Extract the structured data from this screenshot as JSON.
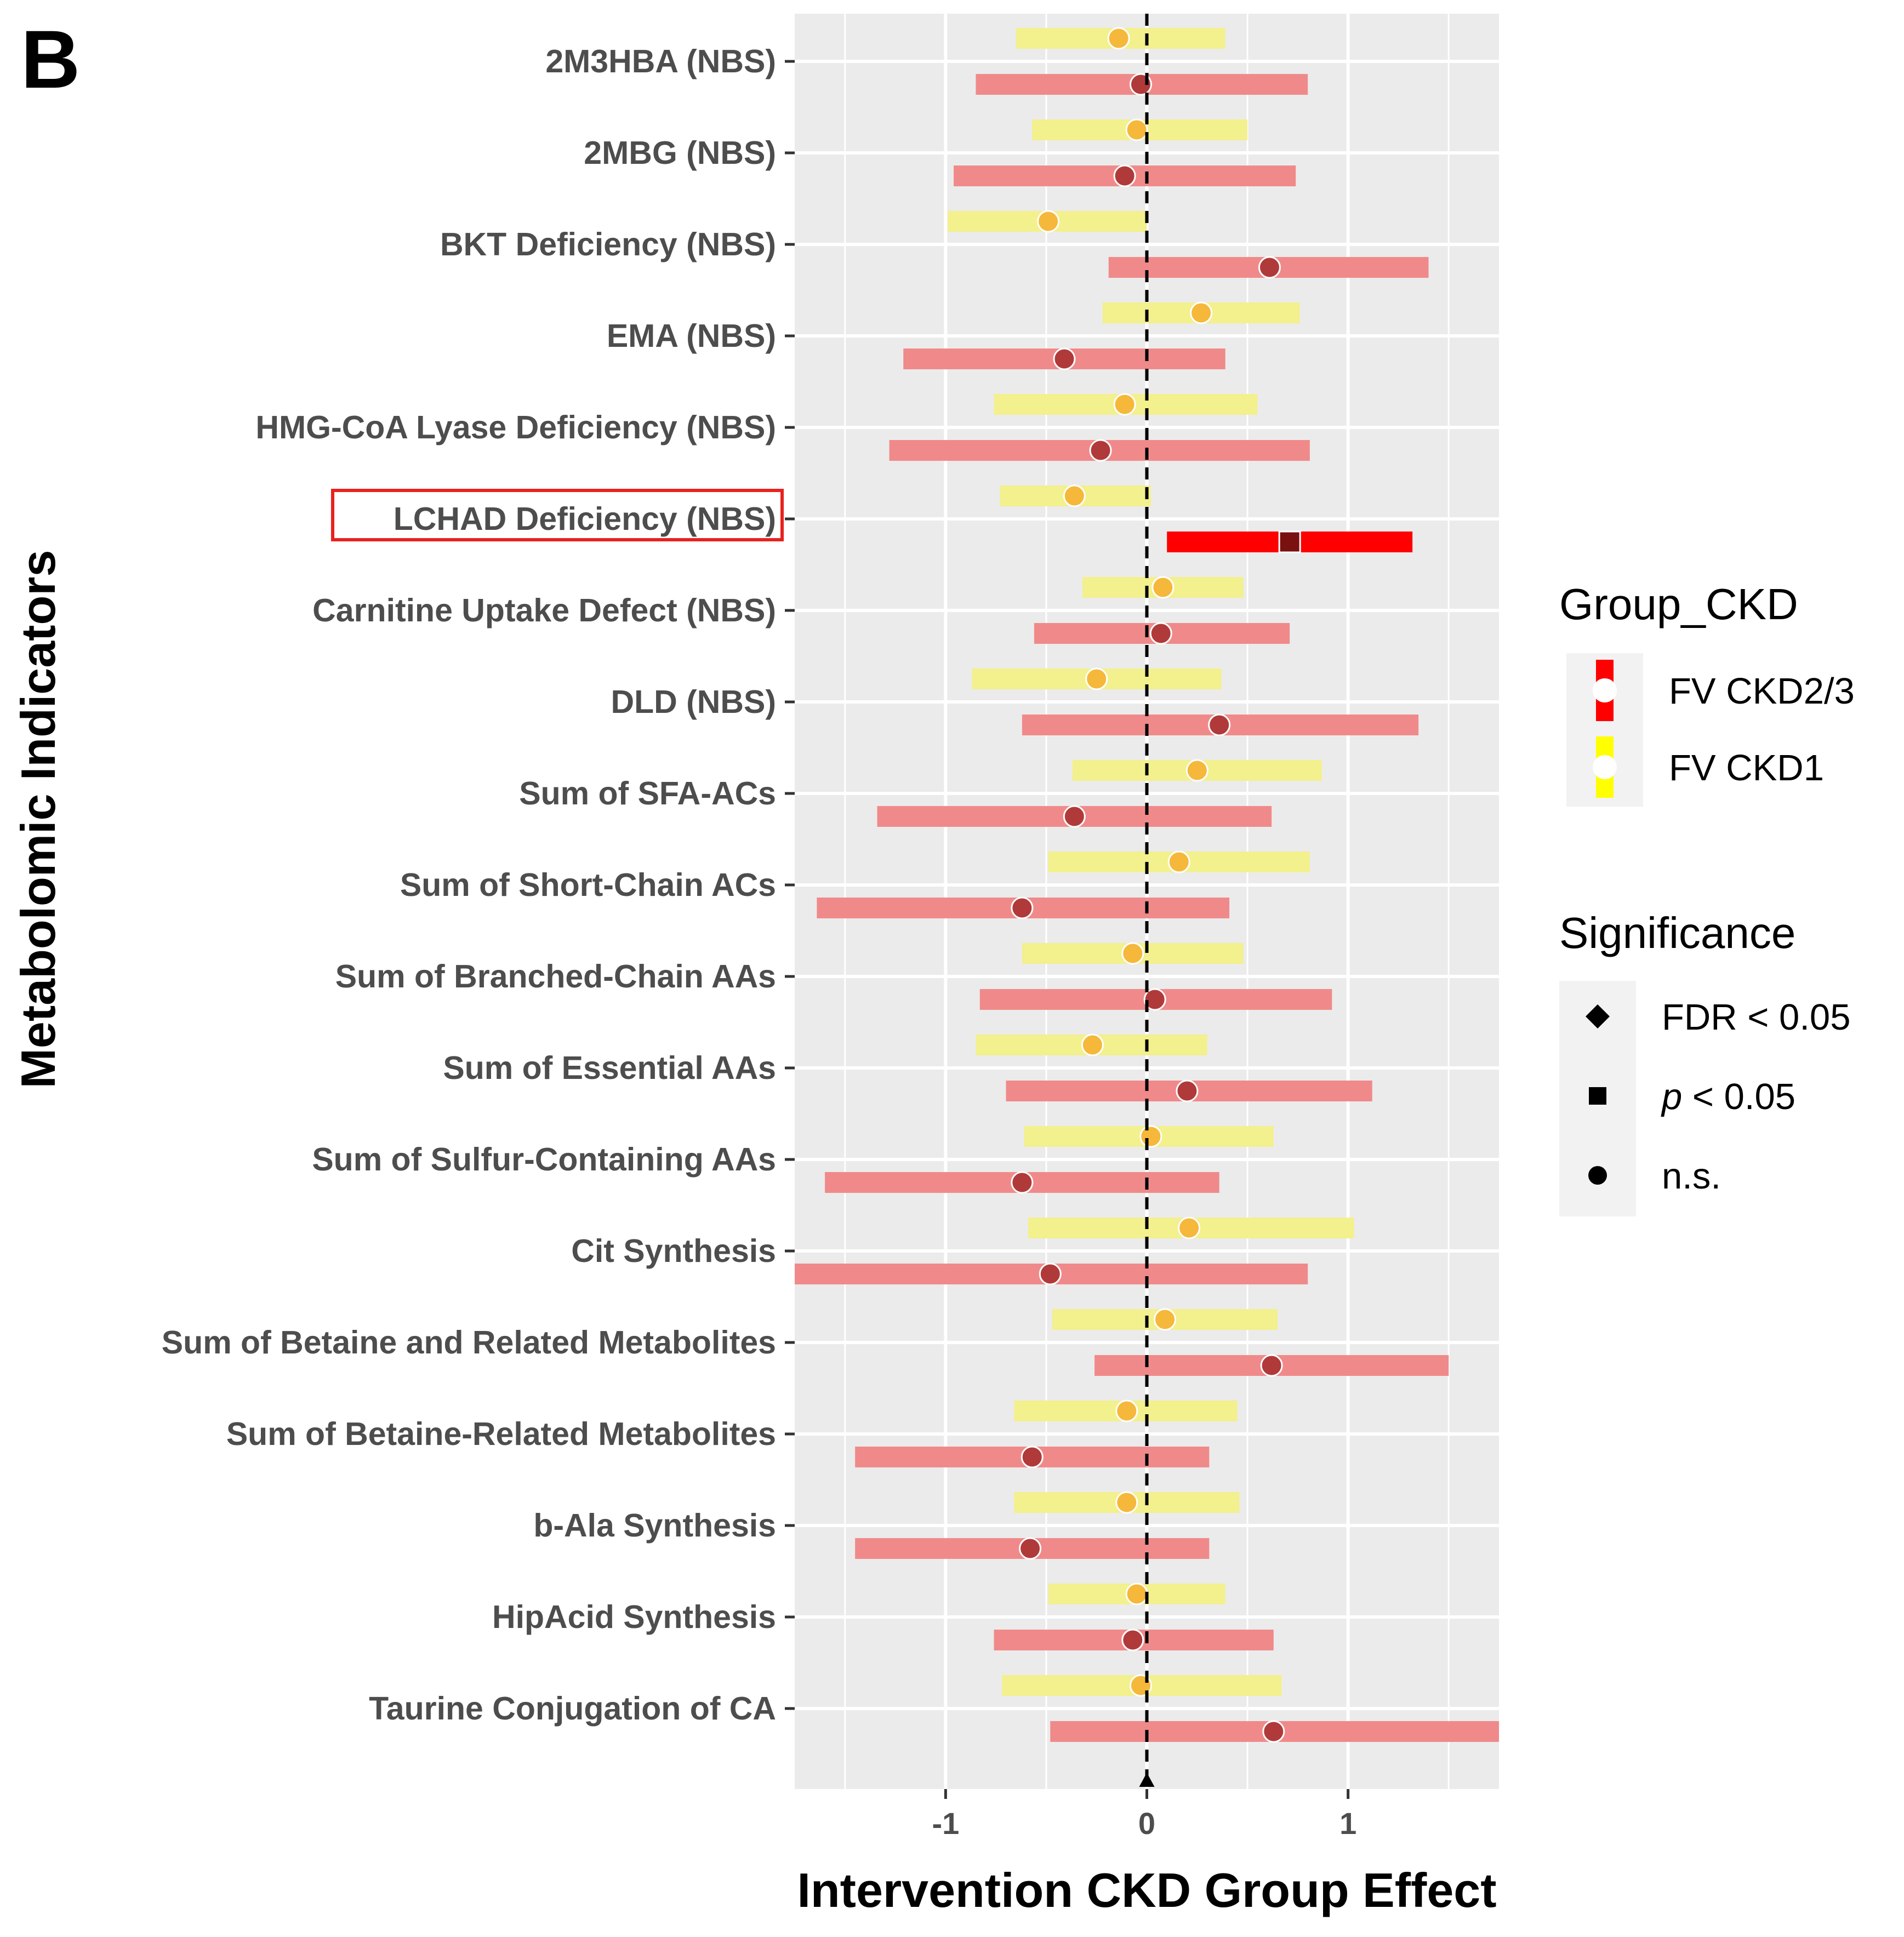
{
  "panel_label": "B",
  "highlight_category": "LCHAD Deficiency (NBS)",
  "colors": {
    "panel_bg": "#ebebeb",
    "grid": "#ffffff",
    "ckd23_bar": "#f08a8a",
    "ckd23_bar_sig": "#ff0000",
    "ckd23_point": "#b03a3a",
    "ckd23_point_sig": "#7a1010",
    "ckd1_bar": "#f3f08e",
    "ckd1_point": "#f5b83a",
    "highlight": "#e8221e",
    "legend_key_bg": "#f2f2f2"
  },
  "chart_data": {
    "type": "forest",
    "title": "",
    "xlabel": "Intervention CKD Group Effect",
    "ylabel": "Metabolomic Indicators",
    "xlim": [
      -1.75,
      1.75
    ],
    "x_ticks": [
      -1,
      0,
      1
    ],
    "x_tick_labels": [
      "-1",
      "0",
      "1"
    ],
    "reference_line": 0,
    "grid": true,
    "categories": [
      "2M3HBA (NBS)",
      "2MBG (NBS)",
      "BKT Deficiency (NBS)",
      "EMA (NBS)",
      "HMG-CoA Lyase Deficiency (NBS)",
      "LCHAD Deficiency (NBS)",
      "Carnitine Uptake Defect (NBS)",
      "DLD (NBS)",
      "Sum of SFA-ACs",
      "Sum of Short-Chain ACs",
      "Sum of Branched-Chain AAs",
      "Sum of Essential AAs",
      "Sum of Sulfur-Containing AAs",
      "Cit Synthesis",
      "Sum of Betaine and Related Metabolites",
      "Sum of Betaine-Related Metabolites",
      "b-Ala Synthesis",
      "HipAcid Synthesis",
      "Taurine Conjugation of CA"
    ],
    "series": [
      {
        "name": "FV CKD1",
        "group": "ckd1",
        "estimate": [
          -0.14,
          -0.05,
          -0.49,
          0.27,
          -0.11,
          -0.36,
          0.08,
          -0.25,
          0.25,
          0.16,
          -0.07,
          -0.27,
          0.02,
          0.21,
          0.09,
          -0.1,
          -0.1,
          -0.05,
          -0.03
        ],
        "lower": [
          -0.65,
          -0.57,
          -0.99,
          -0.22,
          -0.76,
          -0.73,
          -0.32,
          -0.87,
          -0.37,
          -0.49,
          -0.62,
          -0.85,
          -0.61,
          -0.59,
          -0.47,
          -0.66,
          -0.66,
          -0.49,
          -0.72
        ],
        "upper": [
          0.39,
          0.5,
          0.0,
          0.76,
          0.55,
          0.02,
          0.48,
          0.37,
          0.87,
          0.81,
          0.48,
          0.3,
          0.63,
          1.03,
          0.65,
          0.45,
          0.46,
          0.39,
          0.67
        ],
        "significance": [
          "n.s.",
          "n.s.",
          "n.s.",
          "n.s.",
          "n.s.",
          "n.s.",
          "n.s.",
          "n.s.",
          "n.s.",
          "n.s.",
          "n.s.",
          "n.s.",
          "n.s.",
          "n.s.",
          "n.s.",
          "n.s.",
          "n.s.",
          "n.s.",
          "n.s."
        ]
      },
      {
        "name": "FV CKD2/3",
        "group": "ckd23",
        "estimate": [
          -0.03,
          -0.11,
          0.61,
          -0.41,
          -0.23,
          0.71,
          0.07,
          0.36,
          -0.36,
          -0.62,
          0.04,
          0.2,
          -0.62,
          -0.48,
          0.62,
          -0.57,
          -0.58,
          -0.07,
          0.63
        ],
        "lower": [
          -0.85,
          -0.96,
          -0.19,
          -1.21,
          -1.28,
          0.1,
          -0.56,
          -0.62,
          -1.34,
          -1.64,
          -0.83,
          -0.7,
          -1.6,
          -1.75,
          -0.26,
          -1.45,
          -1.45,
          -0.76,
          -0.48
        ],
        "upper": [
          0.8,
          0.74,
          1.4,
          0.39,
          0.81,
          1.32,
          0.71,
          1.35,
          0.62,
          0.41,
          0.92,
          1.12,
          0.36,
          0.8,
          1.5,
          0.31,
          0.31,
          0.63,
          1.75
        ],
        "significance": [
          "n.s.",
          "n.s.",
          "n.s.",
          "n.s.",
          "n.s.",
          "p < 0.05",
          "n.s.",
          "n.s.",
          "n.s.",
          "n.s.",
          "n.s.",
          "n.s.",
          "n.s.",
          "n.s.",
          "n.s.",
          "n.s.",
          "n.s.",
          "n.s.",
          "n.s."
        ]
      }
    ],
    "legends": [
      {
        "title": "Group_CKD",
        "entries": [
          {
            "label": "FV CKD2/3",
            "color": "#ff0000"
          },
          {
            "label": "FV CKD1",
            "color": "#ffff00"
          }
        ]
      },
      {
        "title": "Significance",
        "entries": [
          {
            "shape": "diamond",
            "label_main": "FDR < 0.05",
            "label_italic": "",
            "label_rest": ""
          },
          {
            "shape": "square",
            "label_main": "",
            "label_italic": "p",
            "label_rest": " < 0.05"
          },
          {
            "shape": "circle",
            "label_main": "n.s.",
            "label_italic": "",
            "label_rest": ""
          }
        ]
      }
    ],
    "legend_position": "right"
  }
}
